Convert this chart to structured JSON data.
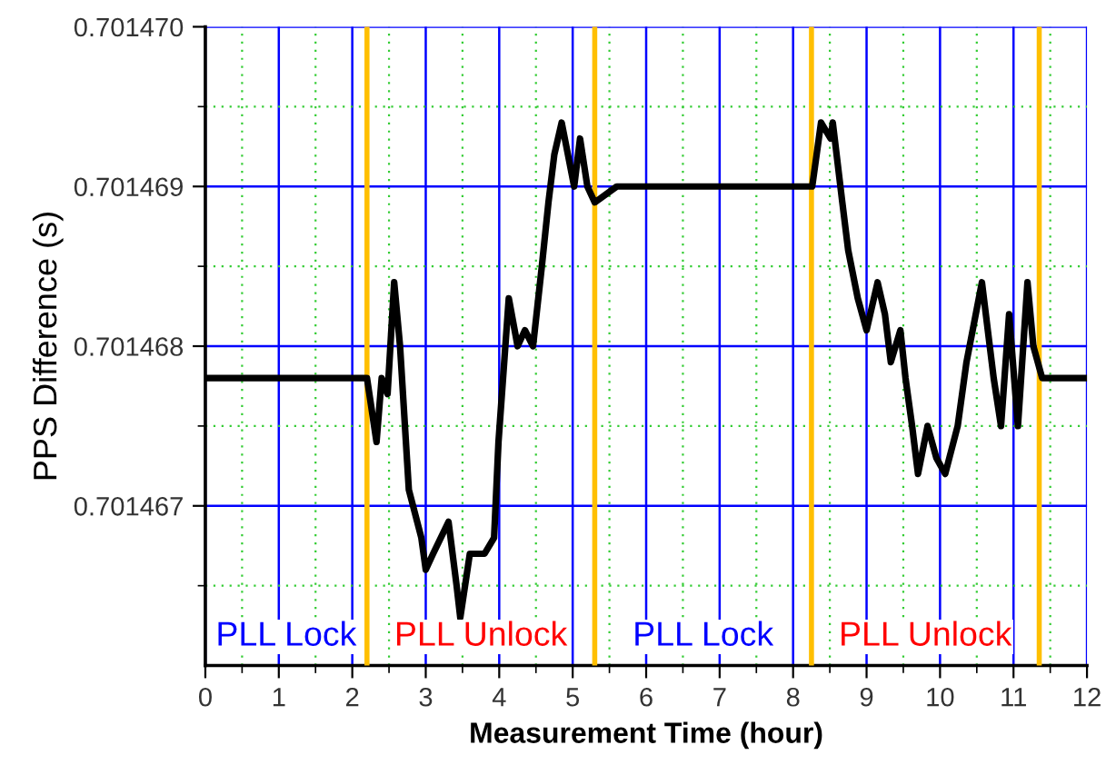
{
  "chart_data": {
    "type": "line",
    "xlabel": "Measurement Time (hour)",
    "ylabel": "PPS Difference (s)",
    "xlim": [
      0,
      12
    ],
    "xticks": [
      0,
      {
        "value": 0.5,
        "label": null
      },
      1,
      {
        "value": 1.5,
        "label": null
      },
      2,
      {
        "value": 2.5,
        "label": null
      },
      3,
      {
        "value": 3.5,
        "label": null
      },
      4,
      {
        "value": 4.5,
        "label": null
      },
      5,
      {
        "value": 5.5,
        "label": null
      },
      6,
      {
        "value": 6.5,
        "label": null
      },
      7,
      {
        "value": 7.5,
        "label": null
      },
      8,
      {
        "value": 8.5,
        "label": null
      },
      9,
      {
        "value": 9.5,
        "label": null
      },
      10,
      {
        "value": 10.5,
        "label": null
      },
      11,
      {
        "value": 11.5,
        "label": null
      },
      12
    ],
    "ylim": [
      0.701466,
      0.70147
    ],
    "yticks": [
      {
        "value": 0.7014665,
        "label": null
      },
      0.701467,
      {
        "value": 0.7014675,
        "label": null
      },
      0.701468,
      {
        "value": 0.7014685,
        "label": null
      },
      0.701469,
      {
        "value": 0.7014695,
        "label": null
      },
      {
        "value": 0.70147,
        "label": "0.701470"
      }
    ],
    "grid": true,
    "marker": "none",
    "line_style": "solid",
    "series": [
      {
        "color": "#000000",
        "x": [
          0,
          0.5,
          1,
          1.5,
          2,
          2.2,
          2.33,
          2.4,
          2.48,
          2.57,
          2.65,
          2.77,
          2.94,
          3.0,
          3.1,
          3.31,
          3.42,
          3.47,
          3.6,
          3.8,
          3.93,
          3.99,
          4.13,
          4.25,
          4.35,
          4.46,
          4.58,
          4.67,
          4.75,
          4.85,
          5.02,
          5.1,
          5.2,
          5.3,
          5.6,
          6,
          6.5,
          7,
          7.5,
          8,
          8.26,
          8.38,
          8.51,
          8.54,
          8.67,
          8.75,
          8.88,
          9.0,
          9.15,
          9.25,
          9.33,
          9.46,
          9.53,
          9.62,
          9.7,
          9.83,
          9.95,
          10.07,
          10.24,
          10.36,
          10.57,
          10.73,
          10.83,
          10.94,
          11.06,
          11.19,
          11.27,
          11.39,
          11.7,
          12
        ],
        "values": [
          0.7014678,
          0.7014678,
          0.7014678,
          0.7014678,
          0.7014678,
          0.7014678,
          0.7014674,
          0.7014678,
          0.7014677,
          0.7014684,
          0.701468,
          0.7014671,
          0.7014668,
          0.7014666,
          0.7014667,
          0.7014669,
          0.7014665,
          0.7014663,
          0.7014667,
          0.7014667,
          0.7014668,
          0.7014674,
          0.7014683,
          0.701468,
          0.7014681,
          0.701468,
          0.7014685,
          0.7014689,
          0.7014692,
          0.7014694,
          0.701469,
          0.7014693,
          0.701469,
          0.7014689,
          0.701469,
          0.701469,
          0.701469,
          0.701469,
          0.701469,
          0.701469,
          0.701469,
          0.7014694,
          0.7014693,
          0.7014694,
          0.7014689,
          0.7014686,
          0.7014683,
          0.7014681,
          0.7014684,
          0.7014682,
          0.7014679,
          0.7014681,
          0.7014678,
          0.7014675,
          0.7014672,
          0.7014675,
          0.7014673,
          0.7014672,
          0.7014675,
          0.7014679,
          0.7014684,
          0.7014678,
          0.7014675,
          0.7014682,
          0.7014675,
          0.7014684,
          0.701468,
          0.7014678,
          0.7014678,
          0.7014678
        ]
      }
    ],
    "ref_lines": [
      {
        "axis": "x",
        "value": 2.2,
        "color": "#ffbf00"
      },
      {
        "axis": "x",
        "value": 5.3,
        "color": "#ffbf00"
      },
      {
        "axis": "x",
        "value": 8.25,
        "color": "#ffbf00"
      },
      {
        "axis": "x",
        "value": 11.35,
        "color": "#ffbf00"
      }
    ],
    "annotations": [
      "PLL Lock",
      "PLL Unlock",
      "PLL Lock",
      "PLL Unlock"
    ]
  }
}
